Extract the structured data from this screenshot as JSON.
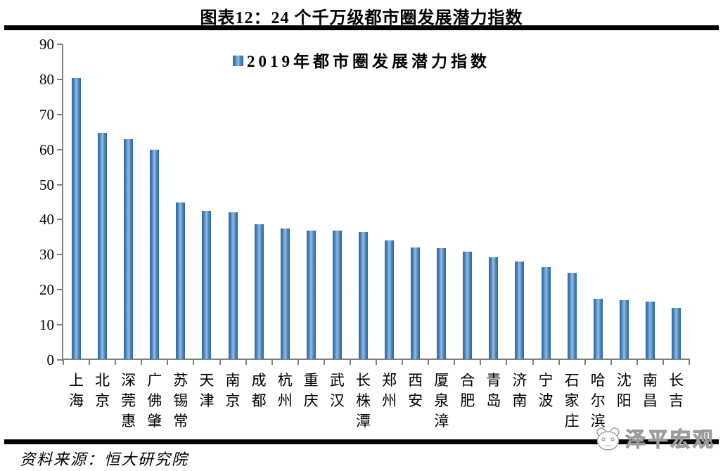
{
  "page": {
    "title": "图表12：24 个千万级都市圈发展潜力指数",
    "source": "资料来源：恒大研究院",
    "watermark": "泽平宏观"
  },
  "colors": {
    "bar_edge": "#2766a6",
    "bar_mid": "#4f87bf",
    "bar_center": "#98bde0",
    "axis": "#808080",
    "rule": "#000000",
    "title_text": "#000000",
    "watermark_gray": "#c9c9c9"
  },
  "icons": {
    "legend_marker": "blue-gradient-square",
    "watermark_logo": "panda-face-icon"
  },
  "chart_data": {
    "type": "bar",
    "title": "图表12：24 个千万级都市圈发展潜力指数",
    "legend": {
      "label": "2019年都市圈发展潜力指数",
      "position": "top-center",
      "marker_color": "#2766a6"
    },
    "categories": [
      "上海",
      "北京",
      "深莞惠",
      "广佛肇",
      "苏锡常",
      "天津",
      "南京",
      "成都",
      "杭州",
      "重庆",
      "武汉",
      "长株潭",
      "郑州",
      "西安",
      "厦泉漳",
      "合肥",
      "青岛",
      "济南",
      "宁波",
      "石家庄",
      "哈尔滨",
      "沈阳",
      "南昌",
      "长吉"
    ],
    "values": [
      80.5,
      64.8,
      63.0,
      60.0,
      44.9,
      42.4,
      42.1,
      38.7,
      37.5,
      36.9,
      36.8,
      36.5,
      34.0,
      32.0,
      31.9,
      30.9,
      29.3,
      28.0,
      26.4,
      24.9,
      17.4,
      17.0,
      16.5,
      14.7
    ],
    "xlabel": "",
    "ylabel": "",
    "ylim": [
      0,
      90
    ],
    "yticks": [
      0,
      10,
      20,
      30,
      40,
      50,
      60,
      70,
      80,
      90
    ],
    "grid": false,
    "source": "资料来源：恒大研究院"
  }
}
